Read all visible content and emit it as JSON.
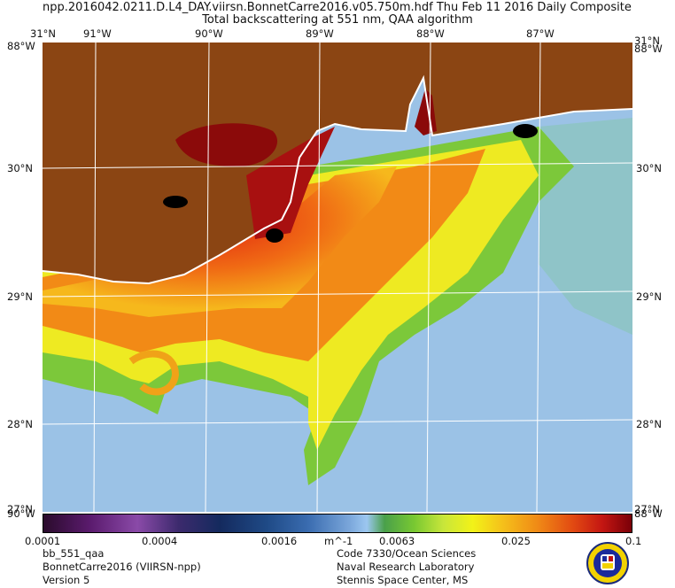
{
  "header": {
    "line1": "npp.2016042.0211.D.L4_DAY.viirsn.BonnetCarre2016.v05.750m.hdf     Thu Feb 11 2016 Daily Composite",
    "line2": "Total backscattering at 551 nm, QAA algorithm"
  },
  "map": {
    "lon_labels": [
      "91°W",
      "90°W",
      "89°W",
      "88°W",
      "87°W"
    ],
    "lat_labels": [
      "30°N",
      "29°N",
      "28°N"
    ],
    "corner_top_left": "31°N",
    "corner_top_right": "31°N",
    "corner_left_upper": "88°W",
    "corner_right_upper": "88°W",
    "corner_left_lower": "90°W",
    "corner_right_lower": "88°W",
    "corner_bottom_left": "27°N",
    "corner_bottom_right": "27°N",
    "colors": {
      "land": "#8b4513",
      "water": "#9bc2e6",
      "grid": "#ffffff"
    }
  },
  "colorbar": {
    "ticks": [
      "0.0001",
      "0.0004",
      "0.0016",
      "m^-1",
      "0.0063",
      "0.025",
      "0.1"
    ]
  },
  "footer": {
    "left": [
      "bb_551_qaa",
      "BonnetCarre2016 (VIIRSN-npp)",
      "Version 5"
    ],
    "right": [
      "Code 7330/Ocean Sciences",
      "Naval Research Laboratory",
      "Stennis Space Center, MS"
    ]
  }
}
